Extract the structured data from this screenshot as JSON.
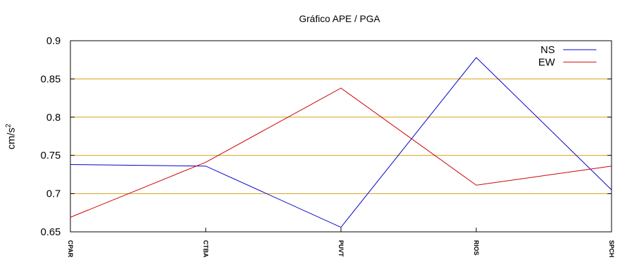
{
  "chart_data": {
    "type": "line",
    "title": "Gráfico  APE / PGA",
    "ylabel": "cm/s2",
    "ylabel_base": "cm/s",
    "ylabel_exponent": "2",
    "xlabel": "",
    "categories": [
      "CPAR",
      "CTBA",
      "PUVT",
      "RIOS",
      "SPCH"
    ],
    "ylim": [
      0.65,
      0.9
    ],
    "yticks": [
      0.65,
      0.7,
      0.75,
      0.8,
      0.85,
      0.9
    ],
    "ytick_labels": [
      "0.65",
      "0.7",
      "0.75",
      "0.8",
      "0.85",
      "0.9"
    ],
    "grid": "horizontal",
    "grid_color": "#d4a017",
    "legend_position": "top-right",
    "series": [
      {
        "name": "NS",
        "color": "#0000cc",
        "values": [
          0.738,
          0.736,
          0.656,
          0.878,
          0.705
        ]
      },
      {
        "name": "EW",
        "color": "#cc0000",
        "values": [
          0.669,
          0.741,
          0.838,
          0.711,
          0.736
        ]
      }
    ]
  }
}
